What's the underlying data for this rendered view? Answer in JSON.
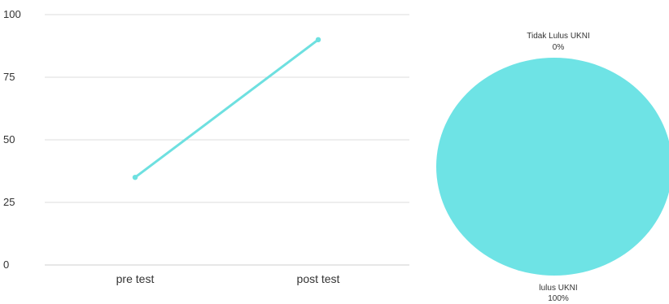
{
  "chart_data": [
    {
      "type": "line",
      "categories": [
        "pre test",
        "post test"
      ],
      "series": [
        {
          "values": [
            35,
            90
          ]
        }
      ],
      "yticks": [
        "0",
        "25",
        "50",
        "75",
        "100"
      ],
      "ylim": [
        0,
        100
      ],
      "grid": true,
      "colors": {
        "series": "#6EE0E0",
        "grid": "#dddddd",
        "text": "#333333"
      }
    },
    {
      "type": "pie",
      "slices": [
        {
          "label": "Tidak Lulus UKNI",
          "value_label": "0%",
          "value": 0
        },
        {
          "label": "lulus UKNI",
          "value_label": "100%",
          "value": 100
        }
      ],
      "colors": {
        "fill": "#6EE3E5",
        "text": "#333333"
      }
    }
  ]
}
